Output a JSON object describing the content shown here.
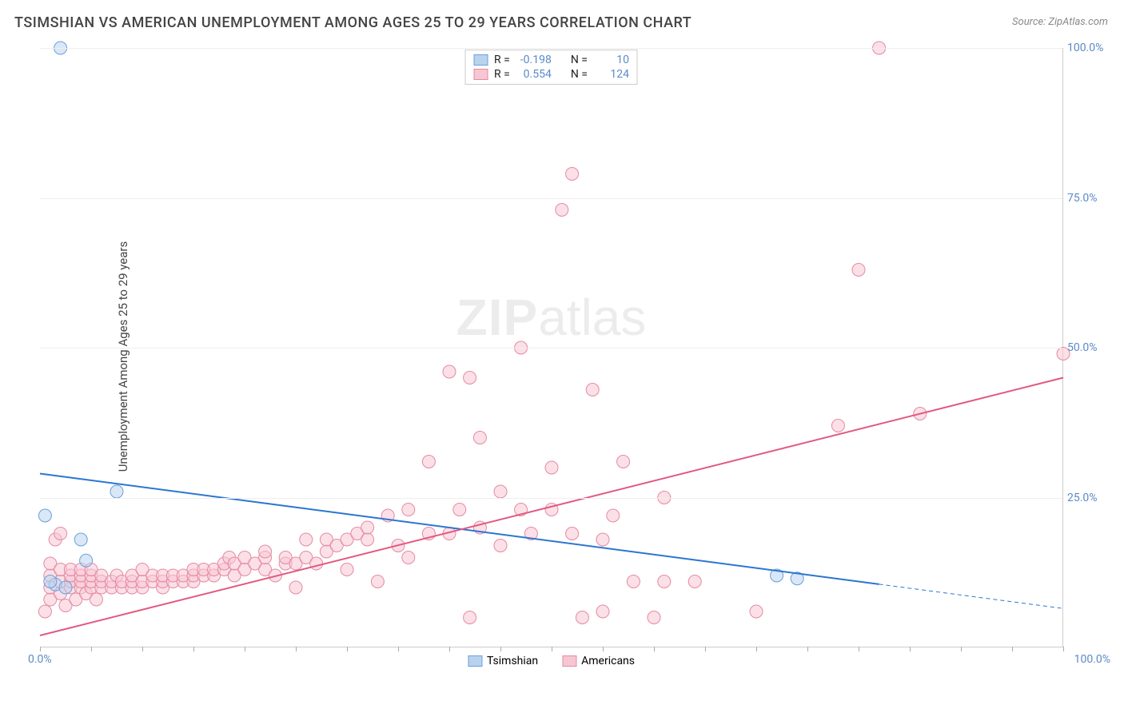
{
  "title": "TSIMSHIAN VS AMERICAN UNEMPLOYMENT AMONG AGES 25 TO 29 YEARS CORRELATION CHART",
  "source": "Source: ZipAtlas.com",
  "ylabel": "Unemployment Among Ages 25 to 29 years",
  "watermark_zip": "ZIP",
  "watermark_atlas": "atlas",
  "chart": {
    "type": "scatter",
    "xlim": [
      0,
      100
    ],
    "ylim": [
      0,
      100
    ],
    "x_unit": "%",
    "y_unit": "%",
    "yticks": [
      25,
      50,
      75,
      100
    ],
    "ytick_labels": [
      "25.0%",
      "50.0%",
      "75.0%",
      "100.0%"
    ],
    "xticks_minor": [
      0,
      5,
      10,
      15,
      20,
      25,
      30,
      35,
      40,
      45,
      50,
      55,
      60,
      65,
      70,
      75,
      80,
      85,
      90,
      95,
      100
    ],
    "xtick_label_left": "0.0%",
    "xtick_label_right": "100.0%",
    "background_color": "#ffffff",
    "grid_color": "#eeeeee",
    "axis_color": "#cccccc",
    "tick_label_color": "#5b8ac7",
    "marker_radius": 8,
    "marker_opacity": 0.55,
    "line_width": 2,
    "series": [
      {
        "name": "Tsimshian",
        "label": "Tsimshian",
        "fill_color": "#b9d3ee",
        "stroke_color": "#6aa0dd",
        "line_color": "#2b76d0",
        "R_label": "R =",
        "R": "-0.198",
        "N_label": "N =",
        "N": "10",
        "regression": {
          "x1": 0,
          "y1": 29,
          "x2": 100,
          "y2": 6.5,
          "solid_until_x": 82
        },
        "points": [
          [
            2,
            100
          ],
          [
            0.5,
            22
          ],
          [
            1.5,
            10.5
          ],
          [
            4,
            18
          ],
          [
            4.5,
            14.5
          ],
          [
            7.5,
            26
          ],
          [
            1,
            11
          ],
          [
            2.5,
            10
          ],
          [
            72,
            12
          ],
          [
            74,
            11.5
          ]
        ]
      },
      {
        "name": "Americans",
        "label": "Americans",
        "fill_color": "#f7c6d3",
        "stroke_color": "#e58aa3",
        "line_color": "#e2577f",
        "R_label": "R =",
        "R": "0.554",
        "N_label": "N =",
        "N": "124",
        "regression": {
          "x1": 0,
          "y1": 2,
          "x2": 100,
          "y2": 45,
          "solid_until_x": 100
        },
        "points": [
          [
            0.5,
            6
          ],
          [
            1,
            8
          ],
          [
            1,
            10
          ],
          [
            1,
            12
          ],
          [
            1,
            14
          ],
          [
            1.5,
            18
          ],
          [
            2,
            9
          ],
          [
            2,
            11
          ],
          [
            2,
            13
          ],
          [
            2,
            19
          ],
          [
            2.5,
            7
          ],
          [
            3,
            10
          ],
          [
            3,
            11
          ],
          [
            3,
            12
          ],
          [
            3,
            13
          ],
          [
            3.5,
            8
          ],
          [
            4,
            10
          ],
          [
            4,
            11
          ],
          [
            4,
            12
          ],
          [
            4,
            13
          ],
          [
            4.5,
            9
          ],
          [
            5,
            10
          ],
          [
            5,
            11
          ],
          [
            5,
            12
          ],
          [
            5,
            13
          ],
          [
            5.5,
            8
          ],
          [
            6,
            10
          ],
          [
            6,
            11
          ],
          [
            6,
            12
          ],
          [
            7,
            10
          ],
          [
            7,
            11
          ],
          [
            7.5,
            12
          ],
          [
            8,
            10
          ],
          [
            8,
            11
          ],
          [
            9,
            10
          ],
          [
            9,
            11
          ],
          [
            9,
            12
          ],
          [
            10,
            10
          ],
          [
            10,
            11
          ],
          [
            10,
            13
          ],
          [
            11,
            11
          ],
          [
            11,
            12
          ],
          [
            12,
            10
          ],
          [
            12,
            11
          ],
          [
            12,
            12
          ],
          [
            13,
            11
          ],
          [
            13,
            12
          ],
          [
            14,
            11
          ],
          [
            14,
            12
          ],
          [
            15,
            11
          ],
          [
            15,
            12
          ],
          [
            15,
            13
          ],
          [
            16,
            12
          ],
          [
            16,
            13
          ],
          [
            17,
            12
          ],
          [
            17,
            13
          ],
          [
            18,
            13
          ],
          [
            18,
            14
          ],
          [
            18.5,
            15
          ],
          [
            19,
            12
          ],
          [
            19,
            14
          ],
          [
            20,
            13
          ],
          [
            20,
            15
          ],
          [
            21,
            14
          ],
          [
            22,
            13
          ],
          [
            22,
            15
          ],
          [
            22,
            16
          ],
          [
            23,
            12
          ],
          [
            24,
            14
          ],
          [
            24,
            15
          ],
          [
            25,
            10
          ],
          [
            25,
            14
          ],
          [
            26,
            15
          ],
          [
            26,
            18
          ],
          [
            27,
            14
          ],
          [
            28,
            16
          ],
          [
            28,
            18
          ],
          [
            29,
            17
          ],
          [
            30,
            13
          ],
          [
            30,
            18
          ],
          [
            31,
            19
          ],
          [
            32,
            18
          ],
          [
            32,
            20
          ],
          [
            33,
            11
          ],
          [
            34,
            22
          ],
          [
            35,
            17
          ],
          [
            36,
            15
          ],
          [
            36,
            23
          ],
          [
            38,
            19
          ],
          [
            38,
            31
          ],
          [
            40,
            19
          ],
          [
            40,
            46
          ],
          [
            41,
            23
          ],
          [
            42,
            5
          ],
          [
            42,
            45
          ],
          [
            43,
            20
          ],
          [
            43,
            35
          ],
          [
            45,
            17
          ],
          [
            45,
            26
          ],
          [
            47,
            23
          ],
          [
            47,
            50
          ],
          [
            48,
            19
          ],
          [
            50,
            23
          ],
          [
            50,
            30
          ],
          [
            51,
            73
          ],
          [
            52,
            19
          ],
          [
            52,
            79
          ],
          [
            53,
            5
          ],
          [
            54,
            43
          ],
          [
            55,
            6
          ],
          [
            55,
            18
          ],
          [
            56,
            22
          ],
          [
            57,
            31
          ],
          [
            58,
            11
          ],
          [
            60,
            5
          ],
          [
            61,
            11
          ],
          [
            61,
            25
          ],
          [
            64,
            11
          ],
          [
            70,
            6
          ],
          [
            78,
            37
          ],
          [
            80,
            63
          ],
          [
            82,
            100
          ],
          [
            86,
            39
          ],
          [
            100,
            49
          ]
        ]
      }
    ]
  }
}
